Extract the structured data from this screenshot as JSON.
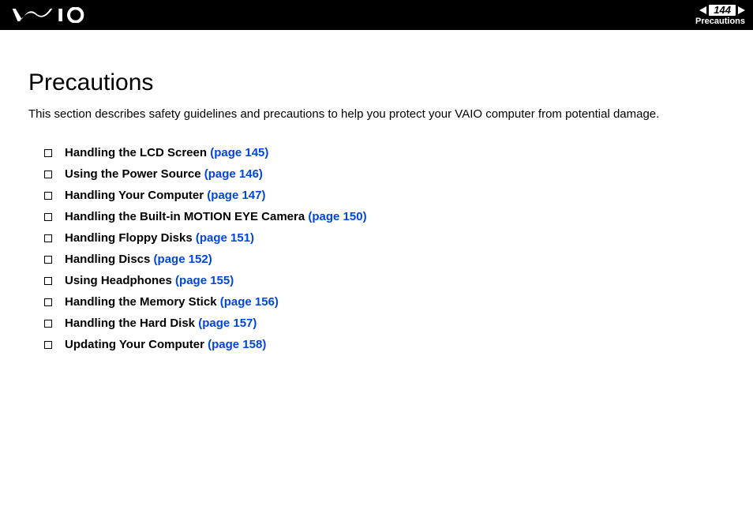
{
  "header": {
    "page_number": "144",
    "breadcrumb": "Precautions"
  },
  "content": {
    "title": "Precautions",
    "intro": "This section describes safety guidelines and precautions to help you protect your VAIO computer from potential damage.",
    "items": [
      {
        "label": "Handling the LCD Screen",
        "page_ref": "(page 145)"
      },
      {
        "label": "Using the Power Source",
        "page_ref": "(page 146)"
      },
      {
        "label": "Handling Your Computer",
        "page_ref": "(page 147)"
      },
      {
        "label": "Handling the Built-in MOTION EYE Camera",
        "page_ref": "(page 150)"
      },
      {
        "label": "Handling Floppy Disks",
        "page_ref": "(page 151)"
      },
      {
        "label": "Handling Discs",
        "page_ref": "(page 152)"
      },
      {
        "label": "Using Headphones",
        "page_ref": "(page 155)"
      },
      {
        "label": "Handling the Memory Stick",
        "page_ref": "(page 156)"
      },
      {
        "label": "Handling the Hard Disk",
        "page_ref": "(page 157)"
      },
      {
        "label": "Updating Your Computer",
        "page_ref": "(page 158)"
      }
    ]
  },
  "colors": {
    "header_bg": "#000000",
    "link": "#0046dd",
    "text": "#000000",
    "bg": "#ffffff"
  }
}
